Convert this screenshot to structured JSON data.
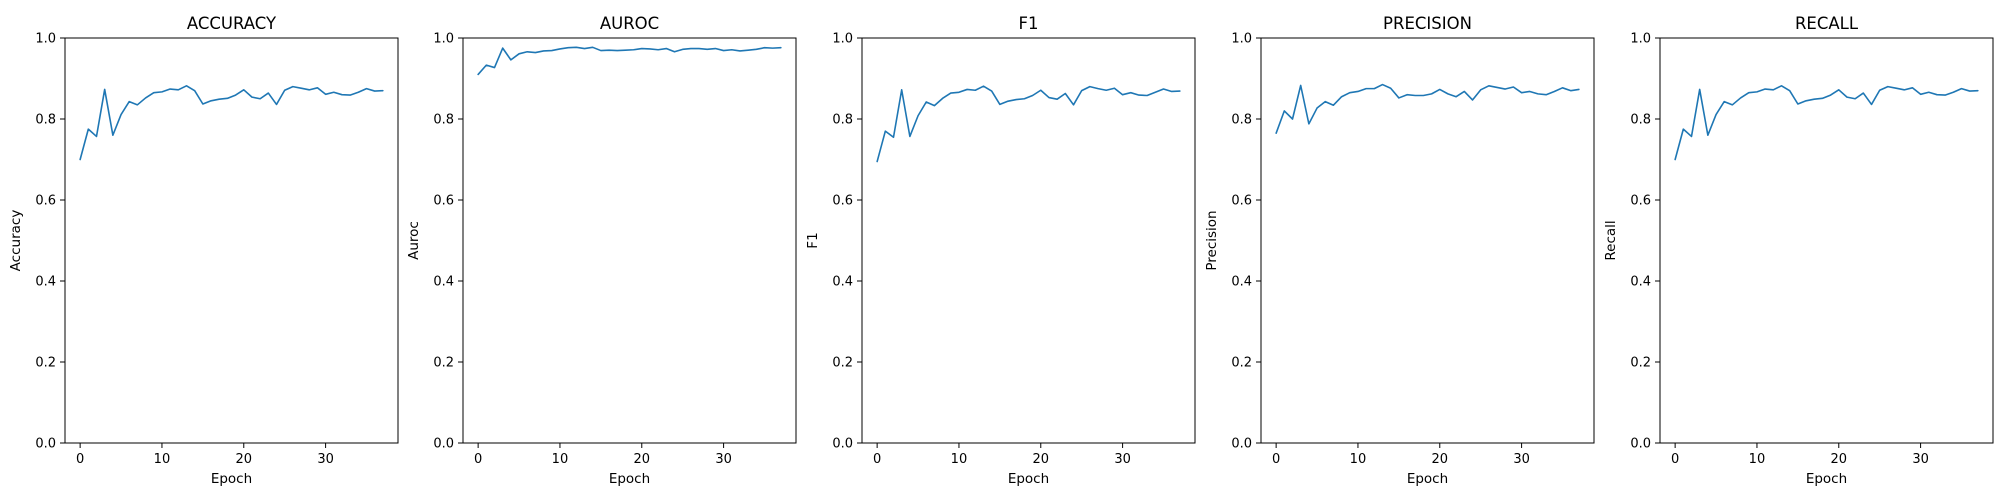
{
  "colors": {
    "line": "#1f77b4",
    "axes": "#000000",
    "background": "#ffffff"
  },
  "chart_data": [
    {
      "type": "line",
      "title": "ACCURACY",
      "xlabel": "Epoch",
      "ylabel": "Accuracy",
      "xlim": [
        -1.85,
        38.85
      ],
      "ylim": [
        0.0,
        1.0
      ],
      "xticks": [
        0,
        10,
        20,
        30
      ],
      "yticks": [
        0.0,
        0.2,
        0.4,
        0.6,
        0.8,
        1.0
      ],
      "x": [
        0,
        1,
        2,
        3,
        4,
        5,
        6,
        7,
        8,
        9,
        10,
        11,
        12,
        13,
        14,
        15,
        16,
        17,
        18,
        19,
        20,
        21,
        22,
        23,
        24,
        25,
        26,
        27,
        28,
        29,
        30,
        31,
        32,
        33,
        34,
        35,
        36,
        37
      ],
      "series": [
        {
          "values": [
            0.7,
            0.775,
            0.757,
            0.873,
            0.76,
            0.811,
            0.843,
            0.835,
            0.852,
            0.865,
            0.867,
            0.874,
            0.872,
            0.882,
            0.87,
            0.837,
            0.845,
            0.849,
            0.851,
            0.859,
            0.872,
            0.854,
            0.85,
            0.864,
            0.836,
            0.871,
            0.88,
            0.876,
            0.872,
            0.877,
            0.861,
            0.866,
            0.86,
            0.859,
            0.866,
            0.875,
            0.869,
            0.87
          ]
        }
      ],
      "grid": false
    },
    {
      "type": "line",
      "title": "AUROC",
      "xlabel": "Epoch",
      "ylabel": "Auroc",
      "xlim": [
        -1.85,
        38.85
      ],
      "ylim": [
        0.0,
        1.0
      ],
      "xticks": [
        0,
        10,
        20,
        30
      ],
      "yticks": [
        0.0,
        0.2,
        0.4,
        0.6,
        0.8,
        1.0
      ],
      "x": [
        0,
        1,
        2,
        3,
        4,
        5,
        6,
        7,
        8,
        9,
        10,
        11,
        12,
        13,
        14,
        15,
        16,
        17,
        18,
        19,
        20,
        21,
        22,
        23,
        24,
        25,
        26,
        27,
        28,
        29,
        30,
        31,
        32,
        33,
        34,
        35,
        36,
        37
      ],
      "series": [
        {
          "values": [
            0.91,
            0.933,
            0.927,
            0.975,
            0.946,
            0.961,
            0.966,
            0.964,
            0.968,
            0.969,
            0.973,
            0.976,
            0.977,
            0.974,
            0.977,
            0.969,
            0.97,
            0.969,
            0.97,
            0.971,
            0.974,
            0.973,
            0.971,
            0.974,
            0.966,
            0.972,
            0.974,
            0.974,
            0.972,
            0.974,
            0.969,
            0.971,
            0.968,
            0.97,
            0.972,
            0.976,
            0.975,
            0.976
          ]
        }
      ],
      "grid": false
    },
    {
      "type": "line",
      "title": "F1",
      "xlabel": "Epoch",
      "ylabel": "F1",
      "xlim": [
        -1.85,
        38.85
      ],
      "ylim": [
        0.0,
        1.0
      ],
      "xticks": [
        0,
        10,
        20,
        30
      ],
      "yticks": [
        0.0,
        0.2,
        0.4,
        0.6,
        0.8,
        1.0
      ],
      "x": [
        0,
        1,
        2,
        3,
        4,
        5,
        6,
        7,
        8,
        9,
        10,
        11,
        12,
        13,
        14,
        15,
        16,
        17,
        18,
        19,
        20,
        21,
        22,
        23,
        24,
        25,
        26,
        27,
        28,
        29,
        30,
        31,
        32,
        33,
        34,
        35,
        36,
        37
      ],
      "series": [
        {
          "values": [
            0.695,
            0.77,
            0.755,
            0.872,
            0.757,
            0.808,
            0.842,
            0.833,
            0.851,
            0.864,
            0.866,
            0.873,
            0.871,
            0.881,
            0.869,
            0.836,
            0.844,
            0.848,
            0.85,
            0.858,
            0.871,
            0.853,
            0.849,
            0.863,
            0.835,
            0.87,
            0.88,
            0.875,
            0.871,
            0.876,
            0.86,
            0.865,
            0.859,
            0.858,
            0.866,
            0.874,
            0.868,
            0.869
          ]
        }
      ],
      "grid": false
    },
    {
      "type": "line",
      "title": "PRECISION",
      "xlabel": "Epoch",
      "ylabel": "Precision",
      "xlim": [
        -1.85,
        38.85
      ],
      "ylim": [
        0.0,
        1.0
      ],
      "xticks": [
        0,
        10,
        20,
        30
      ],
      "yticks": [
        0.0,
        0.2,
        0.4,
        0.6,
        0.8,
        1.0
      ],
      "x": [
        0,
        1,
        2,
        3,
        4,
        5,
        6,
        7,
        8,
        9,
        10,
        11,
        12,
        13,
        14,
        15,
        16,
        17,
        18,
        19,
        20,
        21,
        22,
        23,
        24,
        25,
        26,
        27,
        28,
        29,
        30,
        31,
        32,
        33,
        34,
        35,
        36,
        37
      ],
      "series": [
        {
          "values": [
            0.765,
            0.82,
            0.8,
            0.883,
            0.788,
            0.827,
            0.843,
            0.834,
            0.855,
            0.865,
            0.868,
            0.875,
            0.875,
            0.885,
            0.876,
            0.852,
            0.86,
            0.858,
            0.858,
            0.862,
            0.873,
            0.862,
            0.855,
            0.868,
            0.847,
            0.872,
            0.882,
            0.878,
            0.874,
            0.879,
            0.865,
            0.868,
            0.862,
            0.86,
            0.868,
            0.877,
            0.87,
            0.873
          ]
        }
      ],
      "grid": false
    },
    {
      "type": "line",
      "title": "RECALL",
      "xlabel": "Epoch",
      "ylabel": "Recall",
      "xlim": [
        -1.85,
        38.85
      ],
      "ylim": [
        0.0,
        1.0
      ],
      "xticks": [
        0,
        10,
        20,
        30
      ],
      "yticks": [
        0.0,
        0.2,
        0.4,
        0.6,
        0.8,
        1.0
      ],
      "x": [
        0,
        1,
        2,
        3,
        4,
        5,
        6,
        7,
        8,
        9,
        10,
        11,
        12,
        13,
        14,
        15,
        16,
        17,
        18,
        19,
        20,
        21,
        22,
        23,
        24,
        25,
        26,
        27,
        28,
        29,
        30,
        31,
        32,
        33,
        34,
        35,
        36,
        37
      ],
      "series": [
        {
          "values": [
            0.7,
            0.775,
            0.757,
            0.873,
            0.76,
            0.811,
            0.843,
            0.835,
            0.852,
            0.865,
            0.867,
            0.874,
            0.872,
            0.882,
            0.87,
            0.837,
            0.845,
            0.849,
            0.851,
            0.859,
            0.872,
            0.854,
            0.85,
            0.864,
            0.836,
            0.871,
            0.88,
            0.876,
            0.872,
            0.877,
            0.861,
            0.866,
            0.86,
            0.859,
            0.866,
            0.875,
            0.869,
            0.87
          ]
        }
      ],
      "grid": false
    }
  ]
}
